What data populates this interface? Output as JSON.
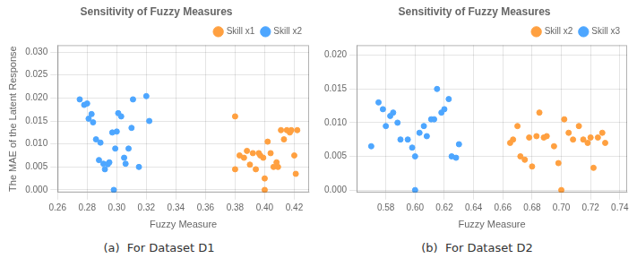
{
  "chart_data": [
    {
      "type": "scatter",
      "title": "Sensitivity of Fuzzy Measures",
      "xlabel": "Fuzzy Measure",
      "ylabel": "The MAE of the Latent Response",
      "annotations": [
        "(a)  For Dataset D1"
      ],
      "series": [
        {
          "name": "Skill x1",
          "color": "#FFA040",
          "x": [
            0.38,
            0.383,
            0.386,
            0.388,
            0.39,
            0.392,
            0.394,
            0.396,
            0.397,
            0.399,
            0.4,
            0.402,
            0.404,
            0.406,
            0.408,
            0.409,
            0.411,
            0.413,
            0.415,
            0.417,
            0.418,
            0.42,
            0.421,
            0.422,
            0.38,
            0.4
          ],
          "values": [
            0.0045,
            0.0075,
            0.007,
            0.0085,
            0.0055,
            0.008,
            0.0045,
            0.008,
            0.0075,
            0.007,
            0.0025,
            0.0105,
            0.008,
            0.005,
            0.006,
            0.005,
            0.013,
            0.011,
            0.013,
            0.0125,
            0.013,
            0.0075,
            0.0035,
            0.013,
            0.016,
            0.0
          ]
        },
        {
          "name": "Skill x2",
          "color": "#4DA6FF",
          "x": [
            0.275,
            0.278,
            0.28,
            0.281,
            0.283,
            0.284,
            0.286,
            0.288,
            0.289,
            0.291,
            0.292,
            0.294,
            0.295,
            0.297,
            0.299,
            0.3,
            0.301,
            0.303,
            0.305,
            0.306,
            0.308,
            0.31,
            0.311,
            0.315,
            0.32,
            0.322,
            0.298
          ],
          "values": [
            0.0197,
            0.0185,
            0.0188,
            0.0155,
            0.0165,
            0.0147,
            0.011,
            0.0065,
            0.0103,
            0.0057,
            0.0045,
            0.0056,
            0.006,
            0.0125,
            0.009,
            0.0127,
            0.0167,
            0.016,
            0.007,
            0.0057,
            0.009,
            0.0135,
            0.0197,
            0.005,
            0.0204,
            0.015,
            0.0
          ]
        }
      ],
      "xlim": [
        0.26,
        0.43
      ],
      "ylim": [
        -0.00055,
        0.0315
      ],
      "xticks": [
        0.26,
        0.28,
        {
          "value": 0.3,
          "label": "0.30"
        },
        0.32,
        0.34,
        0.36,
        0.38,
        {
          "value": 0.4,
          "label": "0.40"
        },
        0.42
      ],
      "yticks": [
        {
          "value": 0,
          "label": "0.000"
        },
        0.005,
        {
          "value": 0.01,
          "label": "0.010"
        },
        0.015,
        {
          "value": 0.02,
          "label": "0.020"
        },
        0.025,
        {
          "value": 0.03,
          "label": "0.030"
        }
      ],
      "grid": true,
      "legend": "upper right"
    },
    {
      "type": "scatter",
      "title": "Sensitivity of Fuzzy Measures",
      "xlabel": "Fuzzy Measure",
      "annotations": [
        "(b)  For Dataset D2"
      ],
      "series": [
        {
          "name": "Skill x2",
          "color": "#FFA040",
          "x": [
            0.665,
            0.667,
            0.67,
            0.672,
            0.675,
            0.678,
            0.68,
            0.683,
            0.685,
            0.688,
            0.69,
            0.695,
            0.698,
            0.702,
            0.705,
            0.708,
            0.712,
            0.715,
            0.718,
            0.72,
            0.722,
            0.725,
            0.728,
            0.73,
            0.7
          ],
          "values": [
            0.007,
            0.0075,
            0.0095,
            0.005,
            0.0045,
            0.0078,
            0.0035,
            0.008,
            0.0115,
            0.0078,
            0.008,
            0.0065,
            0.004,
            0.0105,
            0.0085,
            0.0075,
            0.0095,
            0.0075,
            0.007,
            0.0078,
            0.0033,
            0.0078,
            0.0085,
            0.007,
            0.0
          ]
        },
        {
          "name": "Skill x3",
          "color": "#4DA6FF",
          "x": [
            0.57,
            0.575,
            0.578,
            0.58,
            0.583,
            0.585,
            0.588,
            0.59,
            0.595,
            0.598,
            0.6,
            0.603,
            0.606,
            0.608,
            0.611,
            0.613,
            0.615,
            0.618,
            0.62,
            0.623,
            0.625,
            0.628,
            0.63,
            0.6
          ],
          "values": [
            0.0065,
            0.013,
            0.012,
            0.0095,
            0.011,
            0.0115,
            0.01,
            0.0075,
            0.0075,
            0.0063,
            0.005,
            0.0085,
            0.0095,
            0.008,
            0.0105,
            0.0105,
            0.015,
            0.0115,
            0.012,
            0.0135,
            0.005,
            0.0048,
            0.0068,
            0.0
          ]
        }
      ],
      "xlim": [
        0.56,
        0.745
      ],
      "ylim": [
        -0.00035,
        0.0215
      ],
      "xticks": [
        0.58,
        {
          "value": 0.6,
          "label": "0.60"
        },
        0.62,
        0.64,
        0.66,
        0.68,
        {
          "value": 0.7,
          "label": "0.70"
        },
        0.72,
        0.74
      ],
      "yticks": [
        {
          "value": 0,
          "label": "0.000"
        },
        0.005,
        {
          "value": 0.01,
          "label": "0.010"
        },
        0.015,
        {
          "value": 0.02,
          "label": "0.020"
        }
      ],
      "grid": true,
      "legend": "upper right"
    }
  ]
}
